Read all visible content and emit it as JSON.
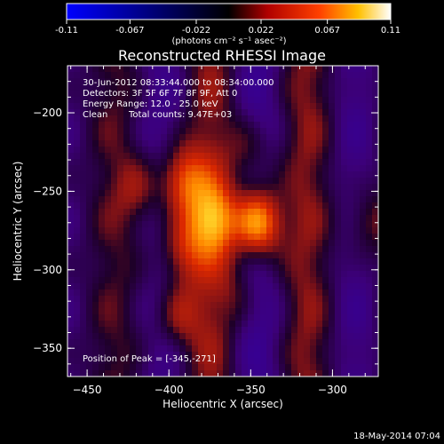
{
  "colorbar": {
    "tick_labels": [
      "-0.11",
      "-0.067",
      "-0.022",
      "0.022",
      "0.067",
      "0.11"
    ],
    "tick_values": [
      -0.11,
      -0.067,
      -0.022,
      0.022,
      0.067,
      0.11
    ],
    "units_label": "(photons cm⁻² s⁻¹ asec⁻²)",
    "range": [
      -0.11,
      0.11
    ],
    "colormap": [
      "#0000ff",
      "#000000",
      "#ff0000",
      "#ffd200",
      "#ffffff"
    ]
  },
  "plot": {
    "title": "Reconstructed RHESSI Image",
    "xlabel": "Heliocentric X (arcsec)",
    "ylabel": "Heliocentric Y (arcsec)",
    "xlim": [
      -462,
      -272
    ],
    "ylim": [
      -368,
      -170
    ],
    "x_ticks": [
      -450,
      -400,
      -350,
      -300
    ],
    "x_tick_labels": [
      "−450",
      "−400",
      "−350",
      "−300"
    ],
    "y_ticks": [
      -350,
      -300,
      -250,
      -200
    ],
    "y_tick_labels": [
      "−350",
      "−300",
      "−250",
      "−200"
    ]
  },
  "annotations": {
    "time_range": "30-Jun-2012 08:33:44.000 to 08:34:00.000",
    "detectors": "Detectors: 3F 5F 6F 7F 8F 9F, Att 0",
    "energy_range": "Energy Range: 12.0 - 25.0 keV",
    "algorithm": "Clean",
    "total_counts": "Total counts: 9.47E+03",
    "peak_position": "Position of Peak = [-345,-271]"
  },
  "footer": {
    "timestamp": "18-May-2014 07:04"
  },
  "chart_data": {
    "type": "heatmap",
    "title": "Reconstructed RHESSI Image",
    "xlabel": "Heliocentric X (arcsec)",
    "ylabel": "Heliocentric Y (arcsec)",
    "xlim": [
      -462,
      -272
    ],
    "ylim": [
      -368,
      -170
    ],
    "value_range": [
      -0.11,
      0.11
    ],
    "peak": {
      "x": -345,
      "y": -271,
      "value": 0.11
    },
    "sources": [
      {
        "x": -345,
        "y": -270,
        "value": 0.11
      },
      {
        "x": -373,
        "y": -268,
        "value": 0.075
      },
      {
        "x": -392,
        "y": -243,
        "value": 0.07
      },
      {
        "x": -393,
        "y": -288,
        "value": 0.05
      },
      {
        "x": -395,
        "y": -330,
        "value": 0.04
      },
      {
        "x": -350,
        "y": -225,
        "value": 0.035
      },
      {
        "x": -357,
        "y": -312,
        "value": 0.02
      },
      {
        "x": -418,
        "y": -250,
        "value": 0.03
      },
      {
        "x": -280,
        "y": -270,
        "value": 0.035
      }
    ]
  }
}
